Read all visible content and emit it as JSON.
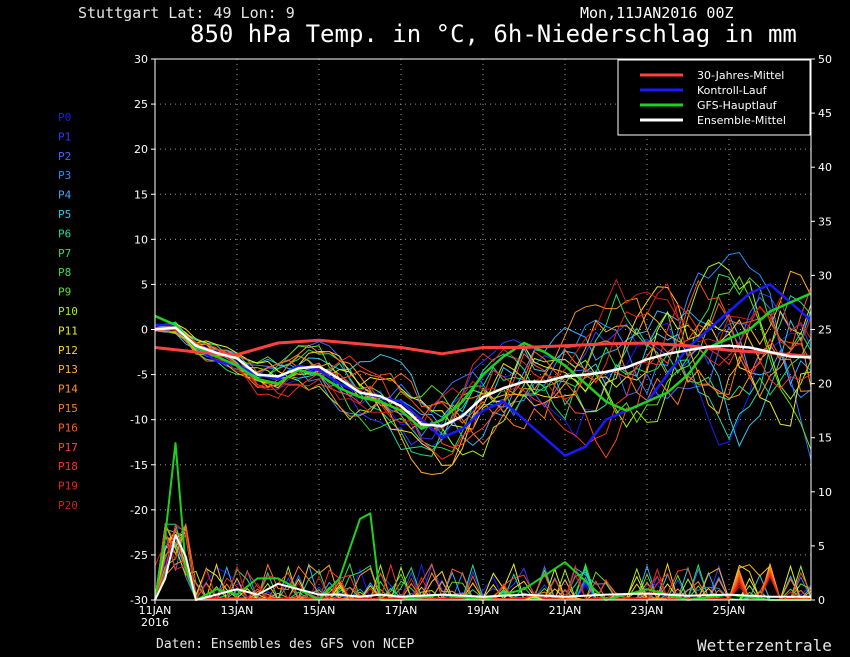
{
  "header": {
    "location": "Stuttgart   Lat: 49 Lon: 9",
    "run": "Mon,11JAN2016 00Z",
    "title": "850 hPa Temp. in °C, 6h-Niederschlag in mm"
  },
  "footer": {
    "credit": "Daten: Ensembles des GFS von NCEP",
    "brand": "Wetterzentrale"
  },
  "chart_data": {
    "type": "line",
    "title": "850 hPa Temp. in °C, 6h-Niederschlag in mm",
    "x_tick_labels": [
      "11JAN",
      "13JAN",
      "15JAN",
      "17JAN",
      "19JAN",
      "21JAN",
      "23JAN",
      "25JAN"
    ],
    "x_tick_positions_days": [
      0,
      2,
      4,
      6,
      8,
      10,
      12,
      14
    ],
    "x_start_year": "2016",
    "xlim_days": [
      0,
      16
    ],
    "ylim_left": [
      -30,
      30
    ],
    "ylim_right": [
      0,
      50
    ],
    "y_ticks_left": [
      "30",
      "25",
      "20",
      "15",
      "10",
      "5",
      "0",
      "-5",
      "-10",
      "-15",
      "-20",
      "-25",
      "-30"
    ],
    "y_ticks_right": [
      "50",
      "45",
      "40",
      "35",
      "30",
      "25",
      "20",
      "15",
      "10",
      "5",
      "0"
    ],
    "grid": true,
    "legend_position": "top-right",
    "legend": [
      {
        "label": "30-Jahres-Mittel",
        "color": "#ff4040"
      },
      {
        "label": "Kontroll-Lauf",
        "color": "#1a1aff"
      },
      {
        "label": "GFS-Hauptlauf",
        "color": "#1fd11f"
      },
      {
        "label": "Ensemble-Mittel",
        "color": "#ffffff"
      }
    ],
    "members": [
      {
        "name": "P0",
        "color": "#1a1aff"
      },
      {
        "name": "P1",
        "color": "#2a3cff"
      },
      {
        "name": "P2",
        "color": "#3a6cff"
      },
      {
        "name": "P3",
        "color": "#2a8cff"
      },
      {
        "name": "P4",
        "color": "#3aaaff"
      },
      {
        "name": "P5",
        "color": "#30c8e8"
      },
      {
        "name": "P6",
        "color": "#20d8a0"
      },
      {
        "name": "P7",
        "color": "#20e070"
      },
      {
        "name": "P8",
        "color": "#30e040"
      },
      {
        "name": "P9",
        "color": "#60e020"
      },
      {
        "name": "P10",
        "color": "#a0f020"
      },
      {
        "name": "P11",
        "color": "#e8f020"
      },
      {
        "name": "P12",
        "color": "#ffd020"
      },
      {
        "name": "P13",
        "color": "#ffb020"
      },
      {
        "name": "P14",
        "color": "#ff9020"
      },
      {
        "name": "P15",
        "color": "#ff7a20"
      },
      {
        "name": "P16",
        "color": "#ff6020"
      },
      {
        "name": "P17",
        "color": "#ff4a20"
      },
      {
        "name": "P18",
        "color": "#ff3020"
      },
      {
        "name": "P19",
        "color": "#e82818"
      },
      {
        "name": "P20",
        "color": "#d02010"
      }
    ],
    "series": [
      {
        "name": "30-Jahres-Mittel",
        "axis": "left",
        "x": [
          0,
          1,
          2,
          3,
          4,
          5,
          6,
          7,
          8,
          9,
          10,
          11,
          12,
          13,
          14,
          15,
          16
        ],
        "values": [
          -2,
          -2.5,
          -2.8,
          -1.5,
          -1.2,
          -1.6,
          -2,
          -2.7,
          -2,
          -2,
          -1.8,
          -1.6,
          -1.5,
          -1.8,
          -2.3,
          -2.6,
          -3
        ]
      },
      {
        "name": "Ensemble-Mittel",
        "axis": "left",
        "x": [
          0,
          0.5,
          1,
          1.5,
          2,
          2.5,
          3,
          3.5,
          4,
          4.5,
          5,
          5.5,
          6,
          6.5,
          7,
          7.5,
          8,
          8.5,
          9,
          9.5,
          10,
          10.5,
          11,
          11.5,
          12,
          12.5,
          13,
          13.5,
          14,
          14.5,
          15,
          15.5,
          16
        ],
        "values": [
          0,
          0.2,
          -1.8,
          -2.6,
          -3.2,
          -5,
          -5.2,
          -4.3,
          -4.1,
          -5.5,
          -7,
          -7.4,
          -8.5,
          -10.5,
          -10.7,
          -9.6,
          -7.5,
          -6.5,
          -5.8,
          -5.8,
          -5.2,
          -5,
          -4.7,
          -4.2,
          -3.3,
          -2.7,
          -2.3,
          -1.9,
          -1.8,
          -2,
          -2.5,
          -3,
          -3.1
        ]
      },
      {
        "name": "GFS-Hauptlauf",
        "axis": "left",
        "x": [
          0,
          0.5,
          1,
          1.5,
          2,
          2.5,
          3,
          3.5,
          4,
          4.5,
          5,
          5.5,
          6,
          6.5,
          7,
          7.5,
          8,
          8.5,
          9,
          9.5,
          10,
          10.5,
          11,
          11.5,
          12,
          12.5,
          13,
          13.5,
          14,
          14.5,
          15,
          15.5,
          16
        ],
        "values": [
          1.5,
          0.5,
          -2,
          -3,
          -4,
          -5.5,
          -6,
          -4.5,
          -5,
          -6.5,
          -7.5,
          -8,
          -9,
          -11,
          -10,
          -8,
          -5,
          -3,
          -1.5,
          -2.5,
          -4,
          -6,
          -8,
          -9,
          -8,
          -7,
          -5,
          -2,
          -1,
          0,
          2,
          3,
          4
        ]
      },
      {
        "name": "Kontroll-Lauf",
        "axis": "left",
        "x": [
          0,
          0.5,
          1,
          1.5,
          2,
          2.5,
          3,
          3.5,
          4,
          4.5,
          5,
          5.5,
          6,
          6.5,
          7,
          7.5,
          8,
          8.5,
          9,
          9.5,
          10,
          10.5,
          11,
          11.5,
          12,
          12.5,
          13,
          13.5,
          14,
          14.5,
          15,
          15.5,
          16
        ],
        "values": [
          0.5,
          0.5,
          -2,
          -3.5,
          -4,
          -5,
          -5.5,
          -4,
          -4.5,
          -6,
          -7,
          -7.5,
          -8,
          -10,
          -12,
          -11,
          -9,
          -8,
          -10,
          -12,
          -14,
          -13,
          -10,
          -9,
          -8,
          -5,
          -2,
          0,
          2,
          4,
          5,
          3,
          1
        ]
      },
      {
        "name": "Niederschlag Ensemble-Mittel",
        "axis": "right",
        "x": [
          0,
          0.25,
          0.5,
          0.75,
          1,
          1.5,
          2,
          2.5,
          3,
          3.5,
          4,
          4.5,
          5,
          5.5,
          6,
          7,
          8,
          9,
          10,
          11,
          12,
          13,
          14,
          15,
          16
        ],
        "values": [
          0,
          2,
          6,
          4,
          0,
          0.5,
          1,
          0.5,
          1.5,
          1,
          0.5,
          0.5,
          0.3,
          0.5,
          0.3,
          0.5,
          0.3,
          0.5,
          0.3,
          0.5,
          0.6,
          0.4,
          0.5,
          0.3,
          0.3
        ]
      },
      {
        "name": "Niederschlag GFS-Hauptlauf",
        "axis": "right",
        "x": [
          0,
          0.25,
          0.5,
          0.75,
          1,
          1.5,
          2,
          2.5,
          3,
          3.5,
          4,
          4.5,
          5,
          5.25,
          5.5,
          6,
          7,
          8,
          9,
          10,
          11,
          12,
          13,
          14,
          15,
          16
        ],
        "values": [
          0,
          6,
          14.5,
          3,
          0,
          1,
          0.5,
          2,
          2,
          1,
          0,
          2,
          7.5,
          8,
          0,
          0,
          0.5,
          0,
          1,
          3.5,
          0,
          1,
          0,
          0.5,
          0,
          0
        ]
      }
    ]
  }
}
